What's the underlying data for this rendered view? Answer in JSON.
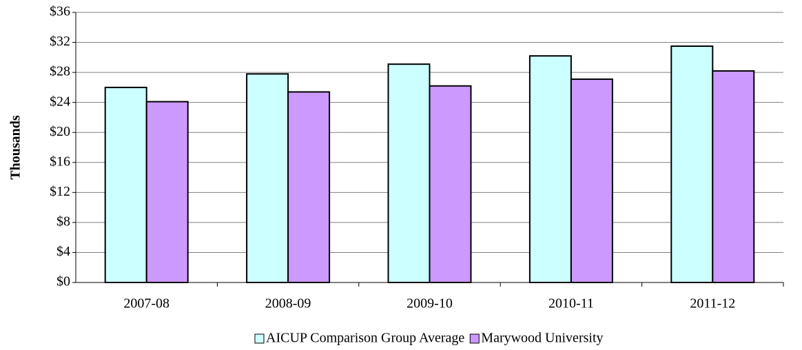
{
  "chart_data": {
    "type": "bar",
    "y_label": "Thousands",
    "categories": [
      "2007-08",
      "2008-09",
      "2009-10",
      "2010-11",
      "2011-12"
    ],
    "series": [
      {
        "name": "AICUP Comparison Group Average",
        "color": "#ccffff",
        "values": [
          26.0,
          27.8,
          29.1,
          30.2,
          31.5
        ]
      },
      {
        "name": "Marywood University",
        "color": "#cc99ff",
        "values": [
          24.1,
          25.4,
          26.2,
          27.1,
          28.2
        ]
      }
    ],
    "ylim": [
      0,
      36
    ],
    "yticks": [
      {
        "value": 0,
        "label": "$0"
      },
      {
        "value": 4,
        "label": "$4"
      },
      {
        "value": 8,
        "label": "$8"
      },
      {
        "value": 12,
        "label": "$12"
      },
      {
        "value": 16,
        "label": "$16"
      },
      {
        "value": 20,
        "label": "$20"
      },
      {
        "value": 24,
        "label": "$24"
      },
      {
        "value": 28,
        "label": "$28"
      },
      {
        "value": 32,
        "label": "$32"
      },
      {
        "value": 36,
        "label": "$36"
      }
    ],
    "grid": true,
    "legend": "bottom"
  }
}
